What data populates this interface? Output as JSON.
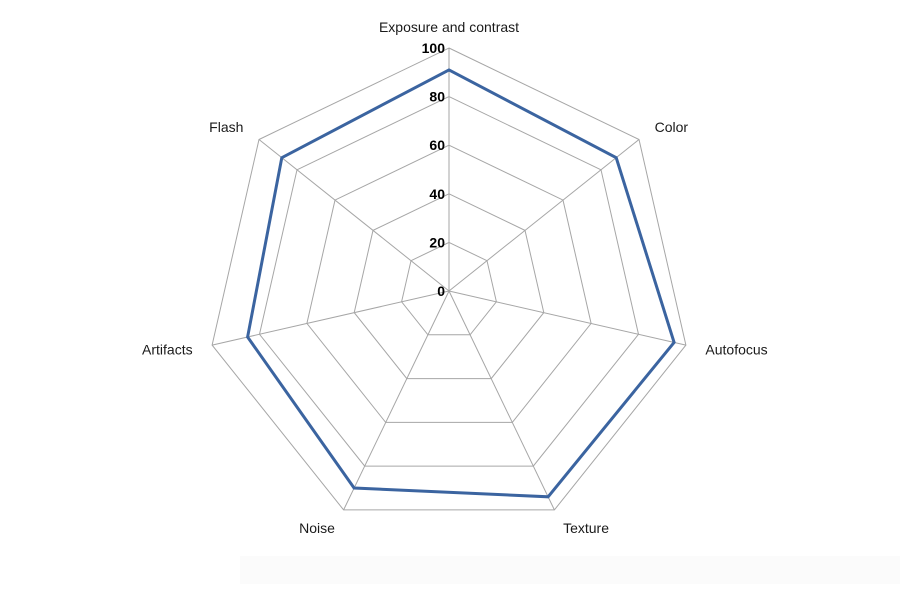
{
  "chart_data": {
    "type": "radar",
    "categories": [
      "Exposure and contrast",
      "Color",
      "Autofocus",
      "Texture",
      "Noise",
      "Artifacts",
      "Flash"
    ],
    "series": [
      {
        "values": [
          91,
          88,
          95,
          94,
          90,
          85,
          88
        ]
      }
    ],
    "rlim": [
      0,
      100
    ],
    "ticks": [
      "0",
      "20",
      "40",
      "60",
      "80",
      "100"
    ],
    "tick_values": [
      0,
      20,
      40,
      60,
      80,
      100
    ],
    "grid": true,
    "colors": {
      "series": "#3b64a0",
      "grid": "#a6a6a6"
    }
  }
}
